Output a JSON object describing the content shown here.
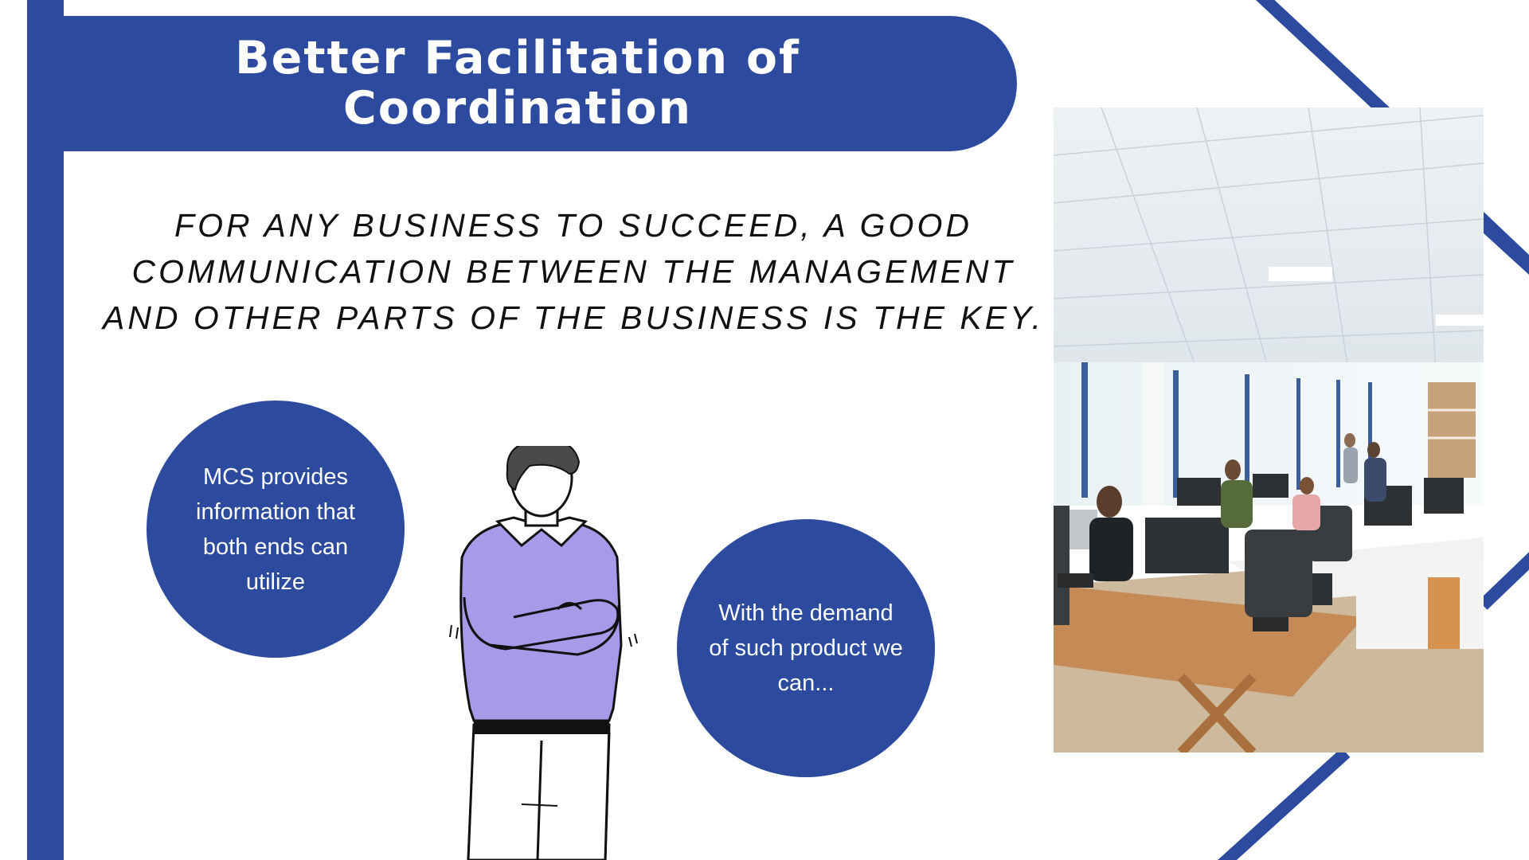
{
  "slide": {
    "title": "Better Facilitation of Coordination",
    "intro": "FOR ANY BUSINESS TO SUCCEED, A GOOD COMMUNICATION BETWEEN THE MANAGEMENT AND OTHER PARTS OF THE BUSINESS IS THE KEY.",
    "bubble_left": "MCS provides information that both ends can utilize",
    "bubble_right": "With the demand of such product we can...",
    "accent_color": "#2c4a9e",
    "icons": [
      "person-thinking-illustration",
      "office-photo"
    ]
  }
}
